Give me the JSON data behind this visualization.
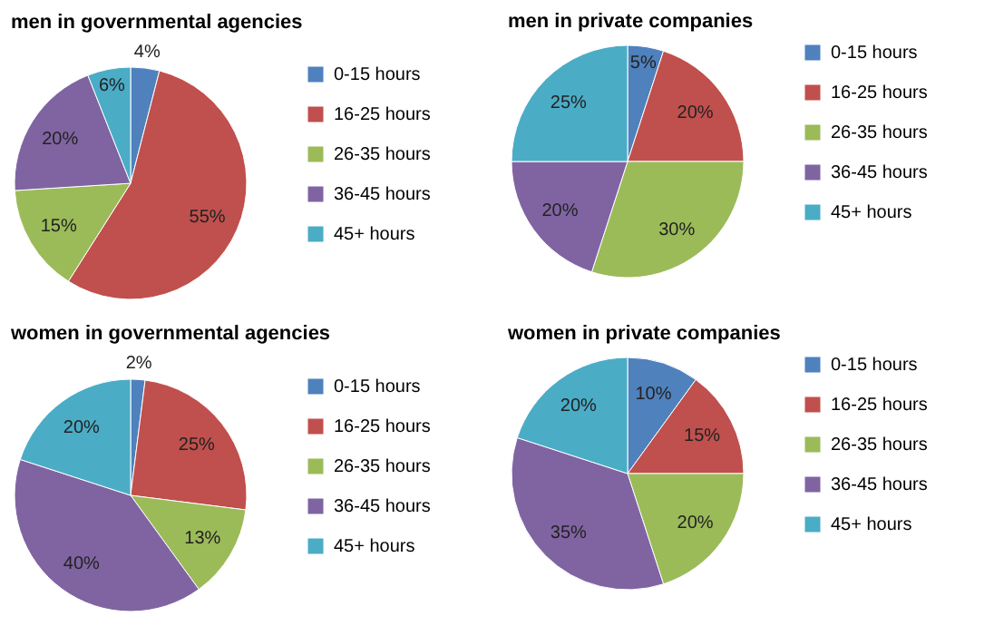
{
  "chart_data": [
    {
      "type": "pie",
      "title": "men in governmental agencies",
      "categories": [
        "0-15 hours",
        "16-25 hours",
        "26-35 hours",
        "36-45 hours",
        "45+ hours"
      ],
      "values": [
        4,
        55,
        15,
        20,
        6
      ],
      "value_labels": [
        "4%",
        "55%",
        "15%",
        "20%",
        "6%"
      ],
      "colors": [
        "#4f81bd",
        "#c0504d",
        "#9bbb59",
        "#8064a2",
        "#4bacc6"
      ],
      "legend": "right"
    },
    {
      "type": "pie",
      "title": "men in private companies",
      "categories": [
        "0-15 hours",
        "16-25 hours",
        "26-35 hours",
        "36-45 hours",
        "45+ hours"
      ],
      "values": [
        5,
        20,
        30,
        20,
        25
      ],
      "value_labels": [
        "5%",
        "20%",
        "30%",
        "20%",
        "25%"
      ],
      "colors": [
        "#4f81bd",
        "#c0504d",
        "#9bbb59",
        "#8064a2",
        "#4bacc6"
      ],
      "legend": "right"
    },
    {
      "type": "pie",
      "title": "women in governmental agencies",
      "categories": [
        "0-15 hours",
        "16-25 hours",
        "26-35 hours",
        "36-45 hours",
        "45+ hours"
      ],
      "values": [
        2,
        25,
        13,
        40,
        20
      ],
      "value_labels": [
        "2%",
        "25%",
        "13%",
        "40%",
        "20%"
      ],
      "colors": [
        "#4f81bd",
        "#c0504d",
        "#9bbb59",
        "#8064a2",
        "#4bacc6"
      ],
      "legend": "right"
    },
    {
      "type": "pie",
      "title": "women in private companies",
      "categories": [
        "0-15 hours",
        "16-25 hours",
        "26-35 hours",
        "36-45 hours",
        "45+ hours"
      ],
      "values": [
        10,
        15,
        20,
        35,
        20
      ],
      "value_labels": [
        "10%",
        "15%",
        "20%",
        "35%",
        "20%"
      ],
      "colors": [
        "#4f81bd",
        "#c0504d",
        "#9bbb59",
        "#8064a2",
        "#4bacc6"
      ],
      "legend": "right"
    }
  ]
}
